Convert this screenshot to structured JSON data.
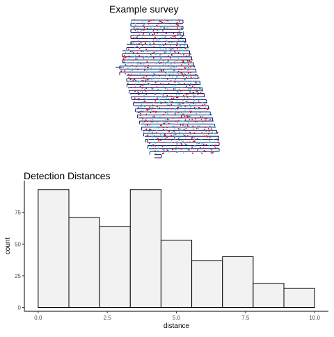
{
  "survey": {
    "title": "Example survey",
    "colors": {
      "transect": "#1a1a6e",
      "detection_a": "#e00000",
      "detection_b": "#2fd0e6"
    }
  },
  "chart_data": {
    "type": "bar",
    "title": "Detection Distances",
    "xlabel": "distance",
    "ylabel": "count",
    "bins": [
      {
        "x0": 0.0,
        "x1": 1.111,
        "count": 93
      },
      {
        "x0": 1.111,
        "x1": 2.222,
        "count": 71
      },
      {
        "x0": 2.222,
        "x1": 3.333,
        "count": 64
      },
      {
        "x0": 3.333,
        "x1": 4.444,
        "count": 93
      },
      {
        "x0": 4.444,
        "x1": 5.556,
        "count": 53
      },
      {
        "x0": 5.556,
        "x1": 6.667,
        "count": 37
      },
      {
        "x0": 6.667,
        "x1": 7.778,
        "count": 40
      },
      {
        "x0": 7.778,
        "x1": 8.889,
        "count": 19
      },
      {
        "x0": 8.889,
        "x1": 10.0,
        "count": 15
      }
    ],
    "xticks": [
      0.0,
      2.5,
      5.0,
      7.5,
      10.0
    ],
    "xtick_labels": [
      "0.0",
      "2.5",
      "5.0",
      "7.5",
      "10.0"
    ],
    "yticks": [
      0,
      25,
      50,
      75
    ],
    "ytick_labels": [
      "0",
      "25",
      "50",
      "75"
    ],
    "xlim": [
      -0.5,
      10.5
    ],
    "ylim": [
      -3,
      100
    ],
    "bar_fill": "#f2f2f2",
    "bar_stroke": "#000000",
    "grid": false,
    "legend": "none"
  }
}
